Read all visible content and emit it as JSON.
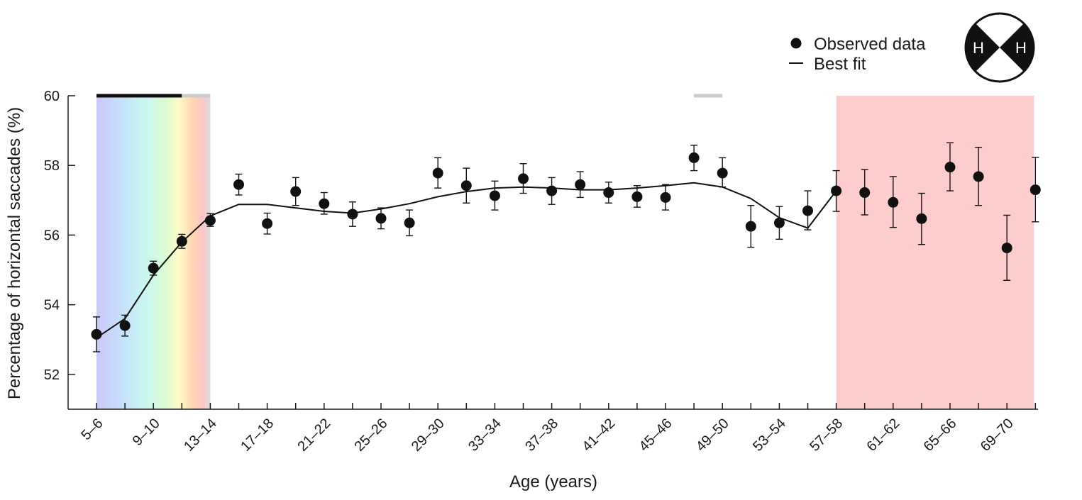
{
  "chart_data": {
    "type": "scatter",
    "xlabel": "Age (years)",
    "ylabel": "Percentage of horizontal saccades (%)",
    "ylim": [
      51,
      60
    ],
    "yticks": [
      52,
      54,
      56,
      58,
      60
    ],
    "x_tick_labels": [
      "5–6",
      "9–10",
      "13–14",
      "17–18",
      "21–22",
      "25–26",
      "29–30",
      "33–34",
      "37–38",
      "41–42",
      "45–46",
      "49–50",
      "53–54",
      "57–58",
      "61–62",
      "65–66",
      "69–70"
    ],
    "age_bins": [
      "5–6",
      "7–8",
      "9–10",
      "11–12",
      "13–14",
      "15–16",
      "17–18",
      "19–20",
      "21–22",
      "23–24",
      "25–26",
      "27–28",
      "29–30",
      "31–32",
      "33–34",
      "35–36",
      "37–38",
      "39–40",
      "41–42",
      "43–44",
      "45–46",
      "47–48",
      "49–50",
      "51–52",
      "53–54",
      "55–56",
      "57–58",
      "59–60",
      "61–62",
      "63–64",
      "65–66",
      "67–68",
      "69–70",
      "71–72"
    ],
    "series": [
      {
        "name": "Observed data",
        "kind": "points-with-error",
        "values": [
          53.15,
          53.4,
          55.05,
          55.82,
          56.42,
          57.45,
          56.33,
          57.25,
          56.9,
          56.6,
          56.48,
          56.35,
          57.78,
          57.42,
          57.13,
          57.62,
          57.27,
          57.45,
          57.22,
          57.1,
          57.08,
          58.22,
          57.78,
          56.25,
          56.35,
          56.7,
          57.27,
          57.22,
          56.94,
          56.47,
          57.95,
          57.68,
          55.63,
          57.3
        ],
        "error_low": [
          52.65,
          53.1,
          54.85,
          55.62,
          56.25,
          57.15,
          56.03,
          56.85,
          56.6,
          56.25,
          56.18,
          55.98,
          57.35,
          56.92,
          56.72,
          57.2,
          56.88,
          57.08,
          56.92,
          56.8,
          56.72,
          57.85,
          57.38,
          55.65,
          55.88,
          56.15,
          56.68,
          56.58,
          56.22,
          55.73,
          57.27,
          56.85,
          54.7,
          56.38
        ],
        "error_high": [
          53.65,
          53.7,
          55.25,
          56.02,
          56.62,
          57.75,
          56.63,
          57.65,
          57.22,
          56.95,
          56.78,
          56.72,
          58.22,
          57.92,
          57.55,
          58.05,
          57.65,
          57.82,
          57.52,
          57.42,
          57.45,
          58.58,
          58.22,
          56.85,
          56.82,
          57.27,
          57.85,
          57.88,
          57.68,
          57.2,
          58.65,
          58.52,
          56.57,
          58.23
        ],
        "color": "#111111"
      },
      {
        "name": "Best fit",
        "kind": "line",
        "values": [
          53.05,
          53.6,
          54.85,
          55.8,
          56.55,
          56.88,
          56.88,
          56.78,
          56.68,
          56.63,
          56.75,
          56.9,
          57.1,
          57.25,
          57.35,
          57.38,
          57.35,
          57.3,
          57.3,
          57.35,
          57.42,
          57.5,
          57.38,
          57.05,
          56.5,
          56.2,
          57.27
        ],
        "color": "#111111"
      }
    ],
    "shaded_regions": [
      {
        "from_bin": "5–6",
        "to_bin": "13–14",
        "fill": "spectrum-gradient"
      },
      {
        "from_bin": "57–58",
        "to_bin": "71–72",
        "fill": "#fdcccc"
      }
    ],
    "significance_bars": [
      {
        "from_bin": "5–6",
        "to_bin": "11–12",
        "color": "#111111"
      },
      {
        "from_bin": "11–12",
        "to_bin": "13–14",
        "color": "#cccccc"
      },
      {
        "from_bin": "47–48",
        "to_bin": "49–50",
        "color": "#cccccc"
      }
    ],
    "legend": {
      "position": "top-right",
      "entries": [
        "Observed data",
        "Best fit"
      ]
    },
    "grid": false,
    "badge": {
      "left_letter": "H",
      "right_letter": "H",
      "icon": "horizontal-saccade-icon"
    },
    "colors": {
      "marker": "#111111",
      "line": "#111111",
      "shade_late": "#fdcccc",
      "bar_dark": "#111111",
      "bar_light": "#cccccc"
    }
  }
}
